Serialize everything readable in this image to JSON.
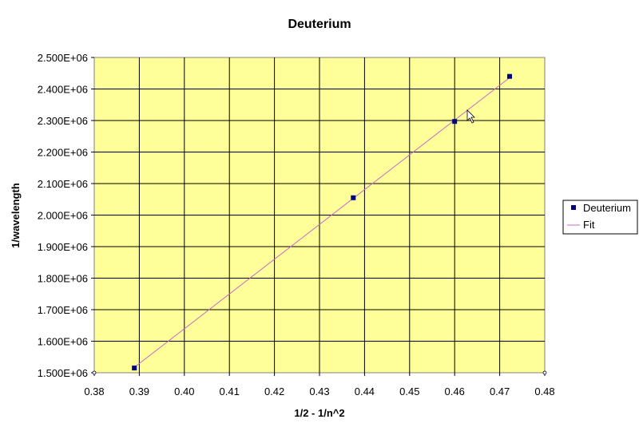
{
  "chart_data": {
    "type": "scatter",
    "title": "Deuterium",
    "xlabel": "1/2 - 1/n^2",
    "ylabel": "1/wavelength",
    "xlim": [
      0.38,
      0.48
    ],
    "ylim": [
      1500000,
      2500000
    ],
    "x_ticks": [
      "0.38",
      "0.39",
      "0.40",
      "0.41",
      "0.42",
      "0.43",
      "0.44",
      "0.45",
      "0.46",
      "0.47",
      "0.48"
    ],
    "y_ticks": [
      "1.500E+06",
      "1.600E+06",
      "1.700E+06",
      "1.800E+06",
      "1.900E+06",
      "2.000E+06",
      "2.100E+06",
      "2.200E+06",
      "2.300E+06",
      "2.400E+06",
      "2.500E+06"
    ],
    "grid": true,
    "legend_position": "right",
    "plot_background": "#ffff99",
    "series": [
      {
        "name": "Deuterium",
        "kind": "markers",
        "color": "#000080",
        "x": [
          0.3889,
          0.4375,
          0.46,
          0.4722
        ],
        "y": [
          1515000,
          2055000,
          2297000,
          2440000
        ]
      },
      {
        "name": "Fit",
        "kind": "line",
        "color": "#cc66cc",
        "x": [
          0.3889,
          0.4722
        ],
        "y": [
          1517000,
          2436000
        ]
      }
    ]
  }
}
